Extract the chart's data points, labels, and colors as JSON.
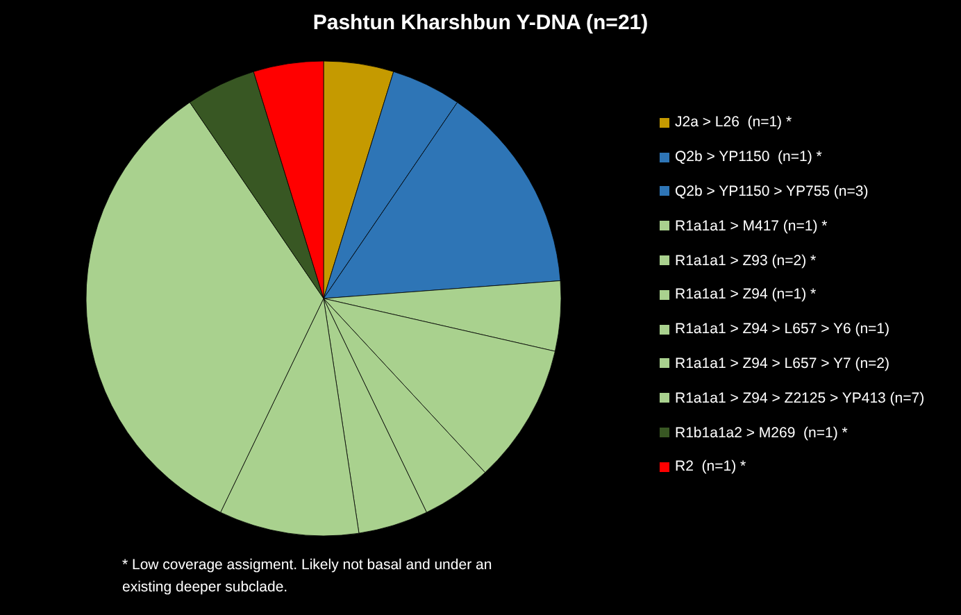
{
  "chart_data": {
    "type": "pie",
    "title": "Pashtun Kharshbun Y-DNA (n=21)",
    "categories": [
      "J2a > L26  (n=1) *",
      "Q2b > YP1150  (n=1) *",
      "Q2b > YP1150 > YP755 (n=3)",
      "R1a1a1 > M417 (n=1) *",
      "R1a1a1 > Z93 (n=2) *",
      "R1a1a1 > Z94 (n=1) *",
      "R1a1a1 > Z94 > L657 > Y6 (n=1)",
      "R1a1a1 > Z94 > L657 > Y7 (n=2)",
      "R1a1a1 > Z94 > Z2125 > YP413 (n=7)",
      "R1b1a1a2 > M269  (n=1) *",
      "R2  (n=1) *"
    ],
    "values": [
      1,
      1,
      3,
      1,
      2,
      1,
      1,
      2,
      7,
      1,
      1
    ],
    "colors": [
      "#c59a00",
      "#2e75b6",
      "#2e75b6",
      "#a9d18e",
      "#a9d18e",
      "#a9d18e",
      "#a9d18e",
      "#a9d18e",
      "#a9d18e",
      "#385723",
      "#ff0000"
    ],
    "legend": "right",
    "annotations": [
      "* Low coverage assigment. Likely not basal and under an existing deeper subclade."
    ]
  }
}
